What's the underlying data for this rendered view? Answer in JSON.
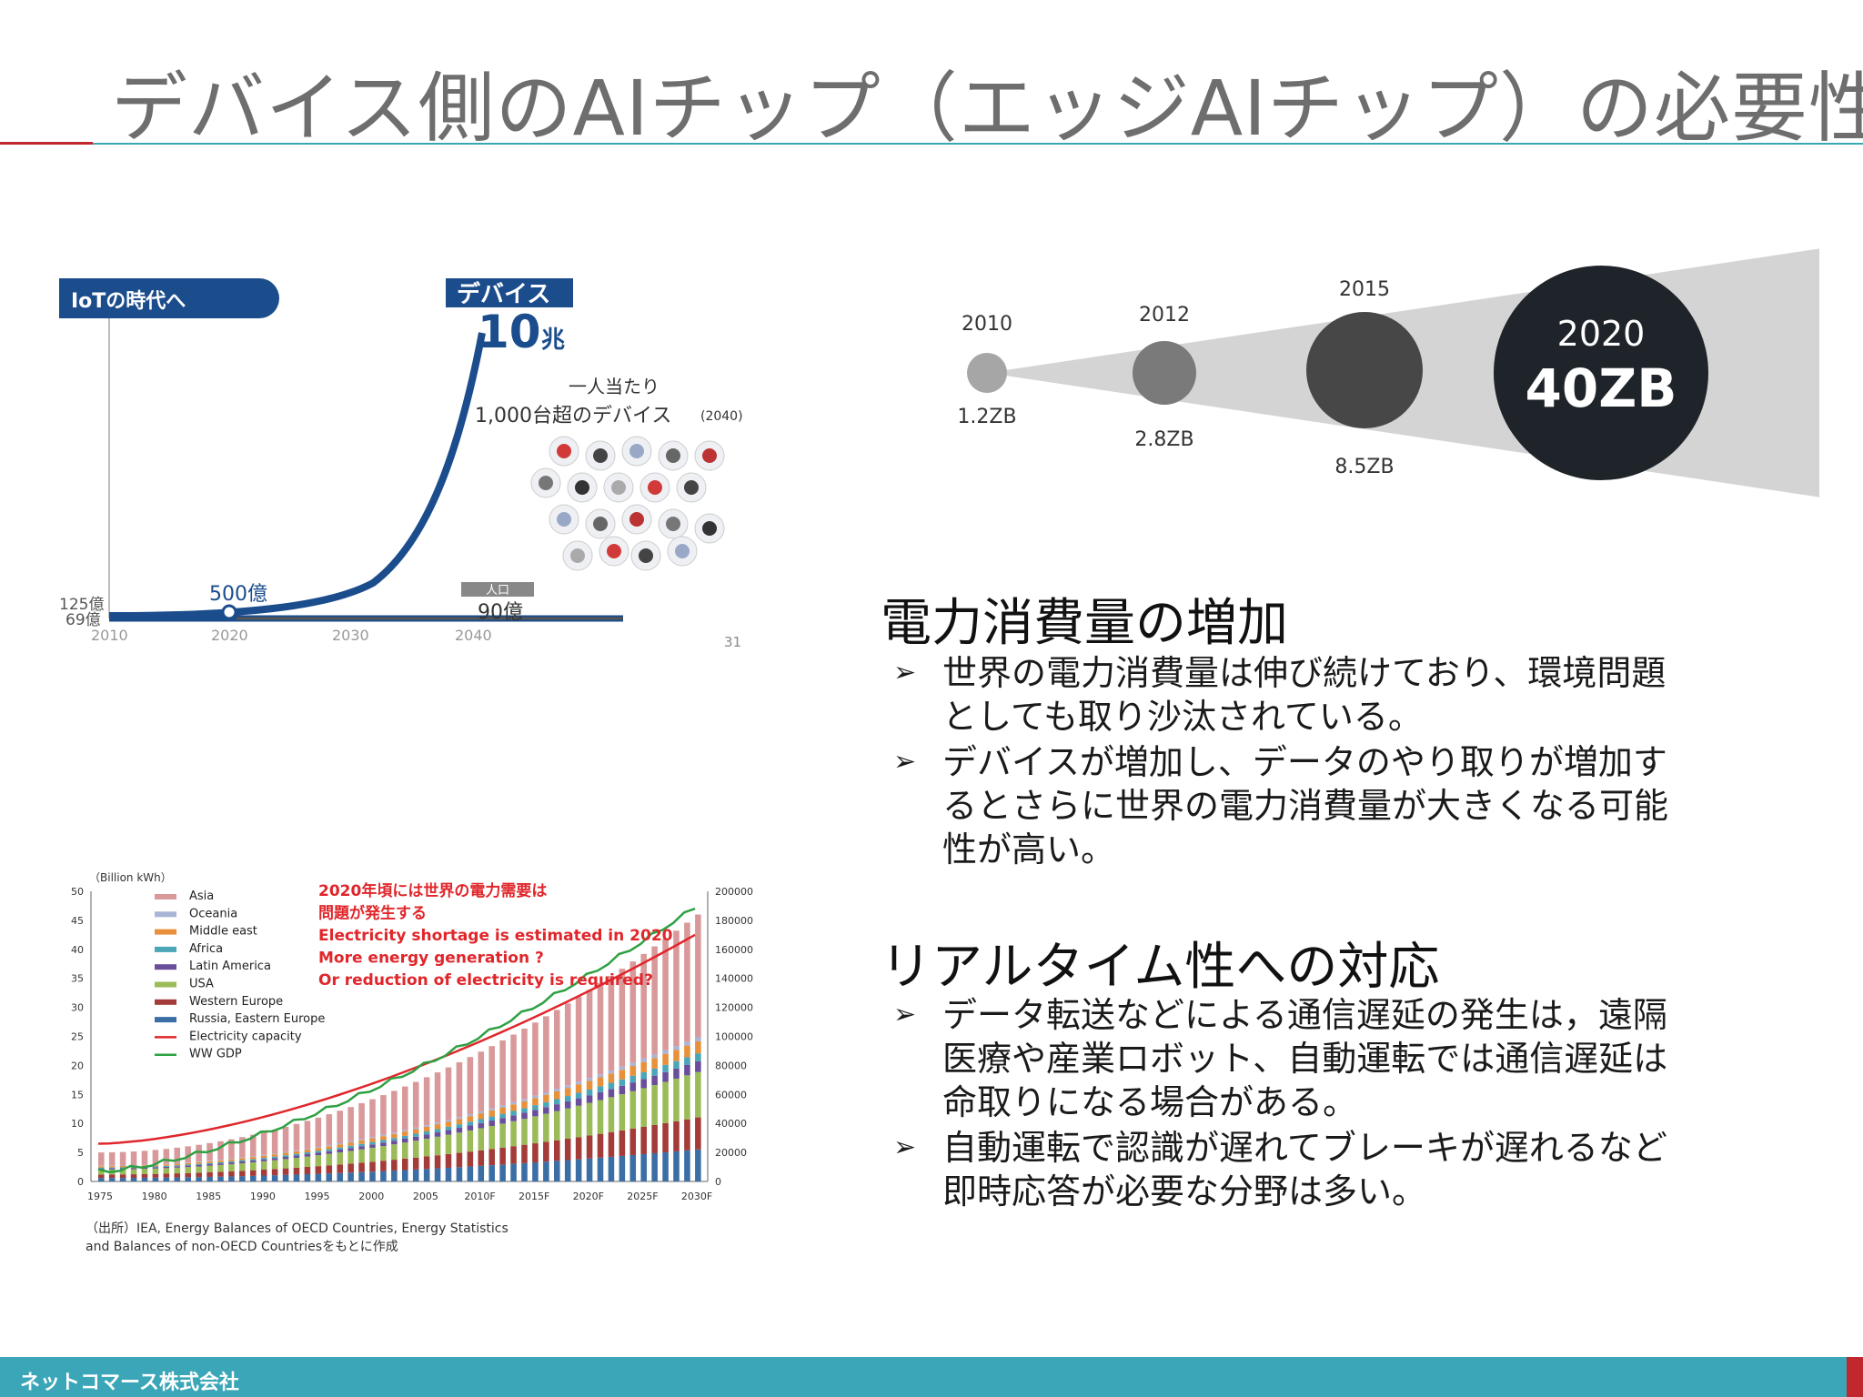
{
  "slide": {
    "title": "デバイス側のAIチップ（エッジAIチップ）の必要性",
    "footer": "ネットコマース株式会社"
  },
  "iot_figure": {
    "badge": "IoTの時代へ",
    "devices_label": "デバイス",
    "devices_value": "10",
    "devices_unit": "兆",
    "per_person_line1": "一人当たり",
    "per_person_line2": "1,000台超のデバイス",
    "per_person_year": "(2040)",
    "point_2020": "500億",
    "start_top": "125億",
    "start_bottom": "69億",
    "population_label": "人口",
    "population_value": "90億",
    "x_ticks": [
      "2010",
      "2020",
      "2030",
      "2040"
    ],
    "page_no": "31"
  },
  "data_growth": {
    "circles": [
      {
        "year": "2010",
        "value": "1.2ZB"
      },
      {
        "year": "2012",
        "value": "2.8ZB"
      },
      {
        "year": "2015",
        "value": "8.5ZB"
      },
      {
        "year": "2020",
        "value": "40ZB"
      }
    ]
  },
  "power_section": {
    "heading": "電力消費量の増加",
    "bullets": [
      [
        "世界の電力消費量は伸び続けており、環境問題",
        "としても取り沙汰されている。"
      ],
      [
        "デバイスが増加し、データのやり取りが増加す",
        "るとさらに世界の電力消費量が大きくなる可能",
        "性が高い。"
      ]
    ]
  },
  "realtime_section": {
    "heading": "リアルタイム性への対応",
    "bullets": [
      [
        "データ転送などによる通信遅延の発生は，遠隔",
        "医療や産業ロボット、自動運転では通信遅延は",
        "命取りになる場合がある。"
      ],
      [
        "自動運転で認識が遅れてブレーキが遅れるなど",
        "即時応答が必要な分野は多い。"
      ]
    ]
  },
  "chart_data": {
    "type": "bar",
    "unit_label": "（Billion kWh）",
    "annotation": [
      "2020年頃には世界の電力需要は",
      "問題が発生する",
      "Electricity shortage is estimated in 2020",
      "More energy generation ?",
      "Or reduction of electricity is required?"
    ],
    "x_tick_labels": [
      "1975",
      "1980",
      "1985",
      "1990",
      "1995",
      "2000",
      "2005",
      "2010F",
      "2015F",
      "2020F",
      "2025F",
      "2030F"
    ],
    "ylim_left": [
      0,
      50
    ],
    "yticks_left": [
      0,
      5,
      10,
      15,
      20,
      25,
      30,
      35,
      40,
      45,
      50
    ],
    "ylim_right": [
      0,
      200000
    ],
    "yticks_right": [
      0,
      20000,
      40000,
      60000,
      80000,
      100000,
      120000,
      140000,
      160000,
      180000,
      200000
    ],
    "legend": [
      {
        "name": "Asia",
        "color": "#d9999a"
      },
      {
        "name": "Oceania",
        "color": "#a9b4d6"
      },
      {
        "name": "Middle east",
        "color": "#e8903a"
      },
      {
        "name": "Africa",
        "color": "#4aa6b8"
      },
      {
        "name": "Latin America",
        "color": "#6b4e9b"
      },
      {
        "name": "USA",
        "color": "#9bbb59"
      },
      {
        "name": "Western Europe",
        "color": "#a33b38"
      },
      {
        "name": "Russia, Eastern Europe",
        "color": "#3b6ea5"
      },
      {
        "name": "Electricity capacity",
        "color": "#e0262b"
      },
      {
        "name": "WW GDP",
        "color": "#2ea043"
      }
    ],
    "source_line1": "（出所）IEA, Energy Balances of OECD Countries, Energy Statistics",
    "source_line2": "and Balances of non-OECD Countriesをもとに作成",
    "bar_start": 5.0,
    "bar_end": 46.0,
    "capacity_start": 6.5,
    "capacity_end": 42.5,
    "gdp_start": 1.5,
    "gdp_end": 47.0,
    "n_bars": 56
  }
}
